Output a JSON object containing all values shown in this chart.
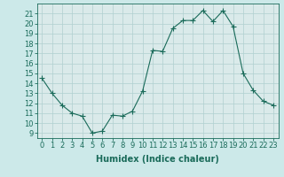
{
  "x": [
    0,
    1,
    2,
    3,
    4,
    5,
    6,
    7,
    8,
    9,
    10,
    11,
    12,
    13,
    14,
    15,
    16,
    17,
    18,
    19,
    20,
    21,
    22,
    23
  ],
  "y": [
    14.5,
    13.0,
    11.8,
    11.0,
    10.7,
    9.0,
    9.2,
    10.8,
    10.7,
    11.2,
    13.2,
    17.3,
    17.2,
    19.5,
    20.3,
    20.3,
    21.3,
    20.2,
    21.3,
    19.7,
    15.0,
    13.3,
    12.2,
    11.8
  ],
  "line_color": "#1a6b5a",
  "marker": "+",
  "marker_size": 4,
  "bg_color": "#cce9e9",
  "plot_bg_color": "#daeaea",
  "grid_color": "#b0d0d0",
  "xlabel": "Humidex (Indice chaleur)",
  "ylim": [
    8.5,
    22
  ],
  "xlim": [
    -0.5,
    23.5
  ],
  "yticks": [
    9,
    10,
    11,
    12,
    13,
    14,
    15,
    16,
    17,
    18,
    19,
    20,
    21
  ],
  "xticks": [
    0,
    1,
    2,
    3,
    4,
    5,
    6,
    7,
    8,
    9,
    10,
    11,
    12,
    13,
    14,
    15,
    16,
    17,
    18,
    19,
    20,
    21,
    22,
    23
  ],
  "xlabel_fontsize": 7,
  "tick_fontsize": 6,
  "tick_color": "#1a6b5a",
  "axis_color": "#1a6b5a",
  "linewidth": 0.8
}
